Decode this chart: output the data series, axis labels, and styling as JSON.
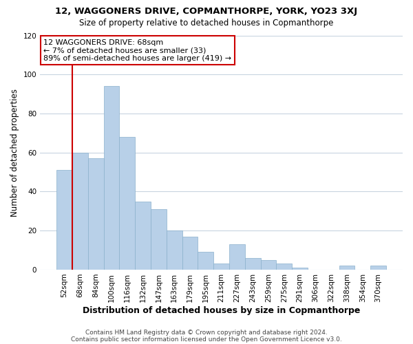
{
  "title": "12, WAGGONERS DRIVE, COPMANTHORPE, YORK, YO23 3XJ",
  "subtitle": "Size of property relative to detached houses in Copmanthorpe",
  "xlabel": "Distribution of detached houses by size in Copmanthorpe",
  "ylabel": "Number of detached properties",
  "bar_color": "#b8d0e8",
  "highlight_color": "#cc0000",
  "bar_edge_color": "#8ab0cc",
  "background_color": "#ffffff",
  "plot_bg_color": "#ffffff",
  "grid_color": "#c8d4e0",
  "categories": [
    "52sqm",
    "68sqm",
    "84sqm",
    "100sqm",
    "116sqm",
    "132sqm",
    "147sqm",
    "163sqm",
    "179sqm",
    "195sqm",
    "211sqm",
    "227sqm",
    "243sqm",
    "259sqm",
    "275sqm",
    "291sqm",
    "306sqm",
    "322sqm",
    "338sqm",
    "354sqm",
    "370sqm"
  ],
  "values": [
    51,
    60,
    57,
    94,
    68,
    35,
    31,
    20,
    17,
    9,
    3,
    13,
    6,
    5,
    3,
    1,
    0,
    0,
    2,
    0,
    2
  ],
  "highlight_bar_index": 1,
  "ylim": [
    0,
    120
  ],
  "yticks": [
    0,
    20,
    40,
    60,
    80,
    100,
    120
  ],
  "annotation_title": "12 WAGGONERS DRIVE: 68sqm",
  "annotation_line1": "← 7% of detached houses are smaller (33)",
  "annotation_line2": "89% of semi-detached houses are larger (419) →",
  "footer1": "Contains HM Land Registry data © Crown copyright and database right 2024.",
  "footer2": "Contains public sector information licensed under the Open Government Licence v3.0."
}
